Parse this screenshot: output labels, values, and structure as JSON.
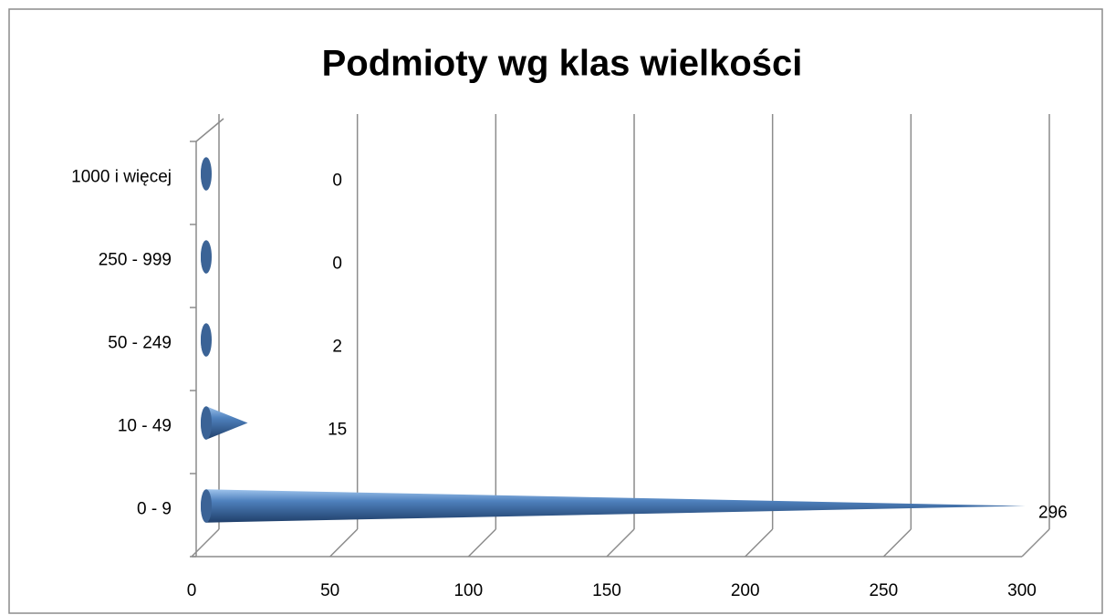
{
  "chart_data": {
    "type": "bar",
    "orientation": "horizontal",
    "style": "3d-cone",
    "title": "Podmioty wg klas wielkości",
    "categories": [
      "0 - 9",
      "10 - 49",
      "50 - 249",
      "250 - 999",
      "1000 i więcej"
    ],
    "values": [
      296,
      15,
      2,
      0,
      0
    ],
    "color": "#4f81bd",
    "xlim": [
      0,
      300
    ],
    "xticks": [
      0,
      50,
      100,
      150,
      200,
      250,
      300
    ],
    "grid": true
  }
}
